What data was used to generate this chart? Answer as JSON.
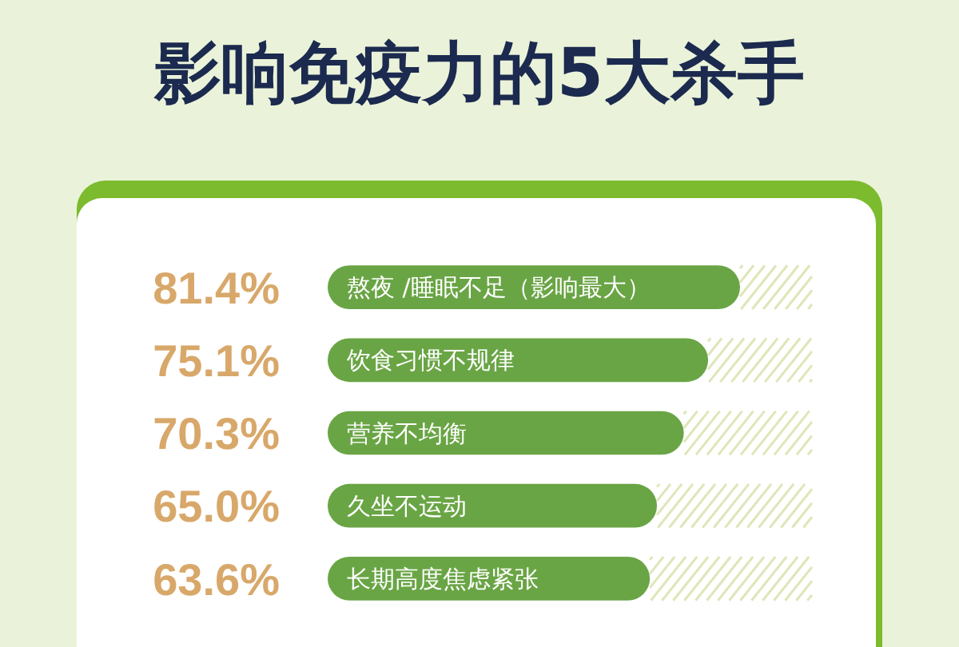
{
  "chart_data": {
    "type": "bar",
    "orientation": "horizontal",
    "title": "影响免疫力的5大杀手",
    "categories": [
      "熬夜 /睡眠不足（影响最大）",
      "饮食习惯不规律",
      "营养不均衡",
      "久坐不运动",
      "长期高度焦虑紧张"
    ],
    "values": [
      81.4,
      75.1,
      70.3,
      65.0,
      63.6
    ],
    "value_labels": [
      "81.4%",
      "75.1%",
      "70.3%",
      "65.0%",
      "63.6%"
    ],
    "color": "#6aa545"
  }
}
